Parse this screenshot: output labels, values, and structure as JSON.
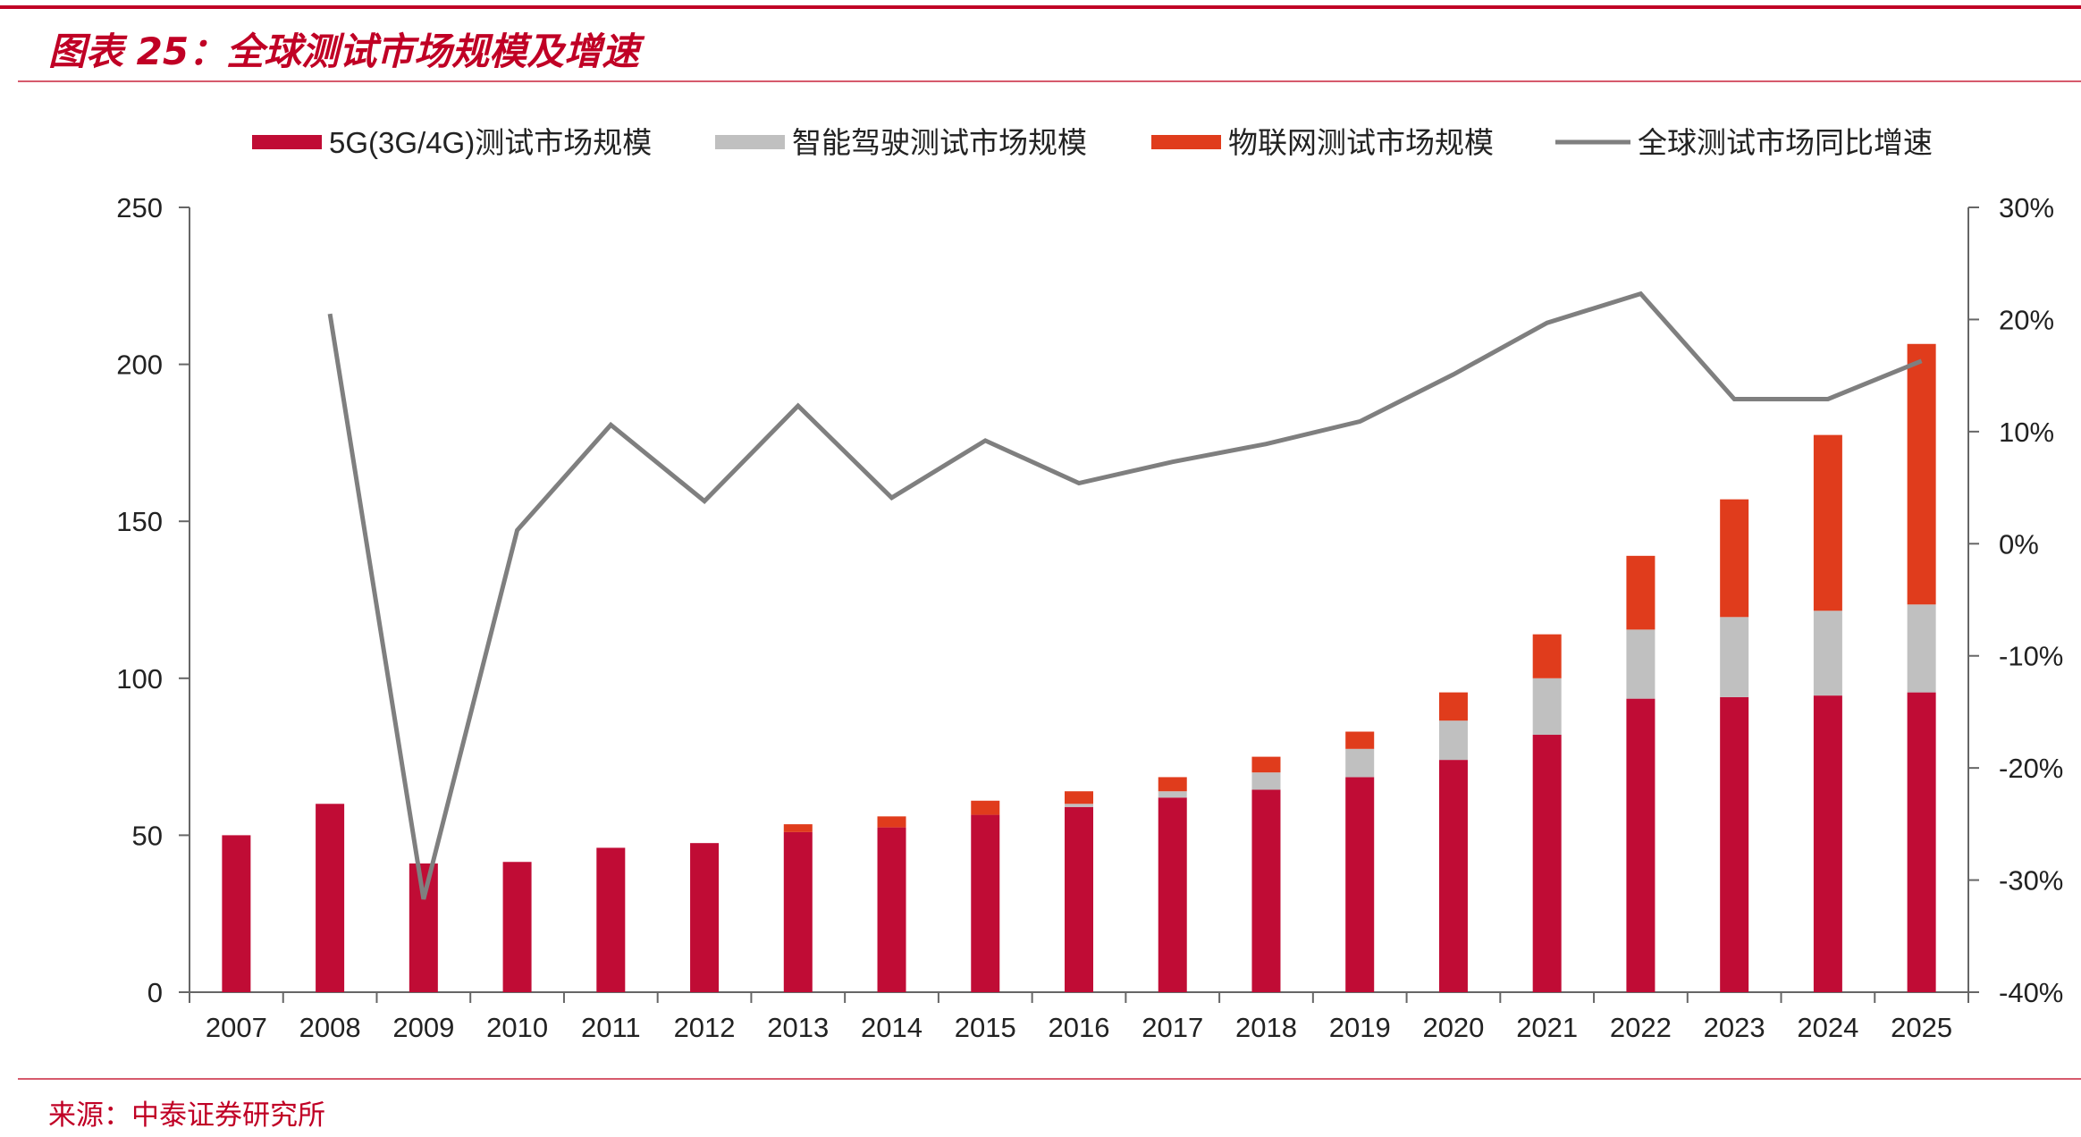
{
  "title": "图表 25：全球测试市场规模及增速",
  "source": "来源：中泰证券研究所",
  "chart_data": {
    "type": "bar",
    "stacked": true,
    "categories": [
      "2007",
      "2008",
      "2009",
      "2010",
      "2011",
      "2012",
      "2013",
      "2014",
      "2015",
      "2016",
      "2017",
      "2018",
      "2019",
      "2020",
      "2021",
      "2022",
      "2023",
      "2024",
      "2025"
    ],
    "series": [
      {
        "name": "5G(3G/4G)测试市场规模",
        "type": "bar",
        "axis": "left",
        "color": "#c00c35",
        "values": [
          50,
          60,
          41,
          41.5,
          46,
          47.5,
          51,
          52.5,
          56.5,
          59,
          62,
          64.5,
          68.5,
          74,
          82,
          93.5,
          94,
          94.5,
          95.5
        ]
      },
      {
        "name": "智能驾驶测试市场规模",
        "type": "bar",
        "axis": "left",
        "color": "#c0c0c0",
        "values": [
          0,
          0,
          0,
          0,
          0,
          0,
          0,
          0,
          0,
          1,
          2,
          5.5,
          9,
          12.5,
          18,
          22,
          25.5,
          27,
          28
        ]
      },
      {
        "name": "物联网测试市场规模",
        "type": "bar",
        "axis": "left",
        "color": "#e03c1c",
        "values": [
          0,
          0,
          0,
          0,
          0,
          0,
          2.5,
          3.5,
          4.5,
          4,
          4.5,
          5,
          5.5,
          9,
          14,
          23.5,
          37.5,
          56,
          83
        ]
      },
      {
        "name": "全球测试市场同比增速",
        "type": "line",
        "axis": "right",
        "color": "#7f7f7f",
        "values": [
          null,
          20.5,
          -31.7,
          1.2,
          10.6,
          3.8,
          12.3,
          4.1,
          9.2,
          5.4,
          7.3,
          8.9,
          10.9,
          15.1,
          19.7,
          22.3,
          12.9,
          12.9,
          16.3
        ]
      }
    ],
    "y_left": {
      "min": 0,
      "max": 250,
      "ticks": [
        0,
        50,
        100,
        150,
        200,
        250
      ]
    },
    "y_right": {
      "min": -40,
      "max": 30,
      "ticks": [
        -40,
        -30,
        -20,
        -10,
        0,
        10,
        20,
        30
      ],
      "tick_labels": [
        "-40%",
        "-30%",
        "-20%",
        "-10%",
        "0%",
        "10%",
        "20%",
        "30%"
      ]
    },
    "legend_position": "top",
    "grid": false
  }
}
